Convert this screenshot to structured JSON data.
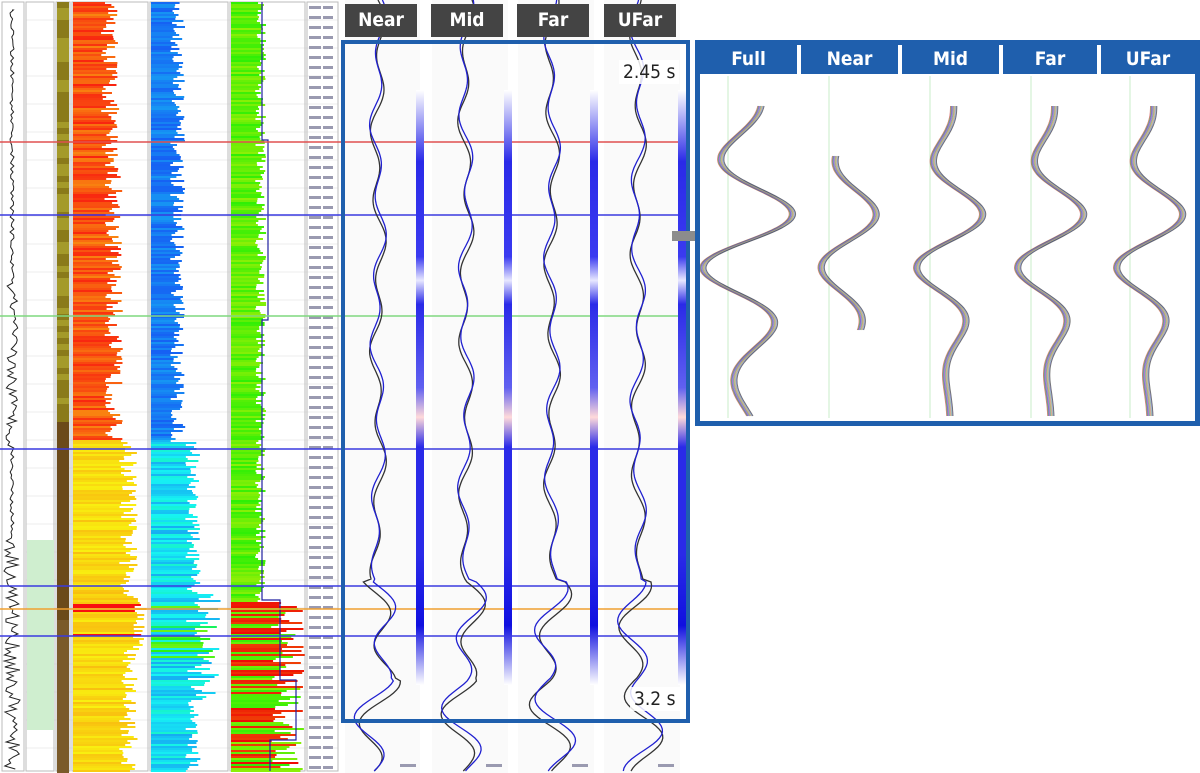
{
  "gather_tabs": [
    {
      "key": "near",
      "label": "Near"
    },
    {
      "key": "mid",
      "label": "Mid"
    },
    {
      "key": "far",
      "label": "Far"
    },
    {
      "key": "ufar",
      "label": "UFar"
    }
  ],
  "wavelet_headers": [
    {
      "key": "full",
      "label": "Full"
    },
    {
      "key": "near",
      "label": "Near"
    },
    {
      "key": "mid",
      "label": "Mid"
    },
    {
      "key": "far",
      "label": "Far"
    },
    {
      "key": "ufar",
      "label": "UFar"
    }
  ],
  "time_window": {
    "top": "2.45 s",
    "bottom": "3.2 s"
  },
  "colors": {
    "frame_blue": "#1f5fad",
    "tab_gray": "#444444",
    "horizon_red": "#e05050",
    "horizon_blue": "#3a3ae0",
    "horizon_orange": "#f0a030",
    "horizon_green": "#7fd87f",
    "arrow_gray": "#8c8c8c"
  },
  "icons": {
    "transition_arrow": "right-arrow-icon"
  }
}
